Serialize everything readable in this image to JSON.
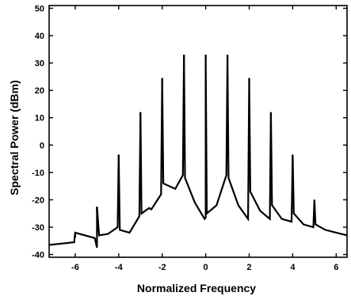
{
  "chart_data": {
    "type": "line",
    "xlabel": "Normalized Frequency",
    "ylabel": "Spectral Power (dBm)",
    "xlim": [
      -7.2,
      6.5
    ],
    "ylim": [
      -41,
      51
    ],
    "x_ticks": [
      -6,
      -4,
      -2,
      0,
      2,
      4,
      6
    ],
    "y_ticks": [
      -40,
      -30,
      -20,
      -10,
      0,
      10,
      20,
      30,
      40,
      50
    ],
    "x_tick_labels": [
      "-6",
      "-4",
      "-2",
      "0",
      "2",
      "4",
      "6"
    ],
    "y_tick_labels": [
      "-40",
      "-30",
      "-20",
      "-10",
      "0",
      "10",
      "20",
      "30",
      "40",
      "50"
    ],
    "grid": false,
    "line_color": "#000000",
    "series": [
      {
        "peaks_x": [
          -6,
          -5,
          -4,
          -3,
          -2,
          -1,
          0,
          1,
          2,
          3,
          4,
          5
        ],
        "peaks_y": [
          -32,
          -22.5,
          -3.5,
          12,
          24.5,
          33,
          33,
          33,
          24.5,
          12,
          -3.5,
          -20
        ],
        "x": [
          -7.2,
          -6.6,
          -6.05,
          -5.1,
          -5.0,
          -4.9,
          -4.5,
          -4.05,
          -3.95,
          -3.5,
          -3.05,
          -2.95,
          -2.6,
          -2.5,
          -2.05,
          -1.95,
          -1.4,
          -1.05,
          -0.95,
          -0.5,
          -0.05,
          0.0,
          0.05,
          0.5,
          0.95,
          1.05,
          1.5,
          1.95,
          2.05,
          2.5,
          2.95,
          3.05,
          3.5,
          3.95,
          4.05,
          4.5,
          4.95,
          5.05,
          5.5,
          6.0,
          6.5
        ],
        "y": [
          -36.5,
          -36.0,
          -35.5,
          -34.0,
          -37.5,
          -33.0,
          -32.5,
          -30.0,
          -31.0,
          -32.0,
          -26.0,
          -25.0,
          -23.0,
          -23.5,
          -18.0,
          -14.0,
          -16.0,
          -11.0,
          -12.0,
          -21.0,
          -27.0,
          -26.5,
          -25.0,
          -22.0,
          -11.0,
          -12.0,
          -22.0,
          -27.0,
          -17.0,
          -24.0,
          -27.0,
          -22.0,
          -27.0,
          -28.0,
          -25.0,
          -29.0,
          -30.0,
          -29.0,
          -31.0,
          -32.0,
          -33.0
        ]
      }
    ]
  }
}
